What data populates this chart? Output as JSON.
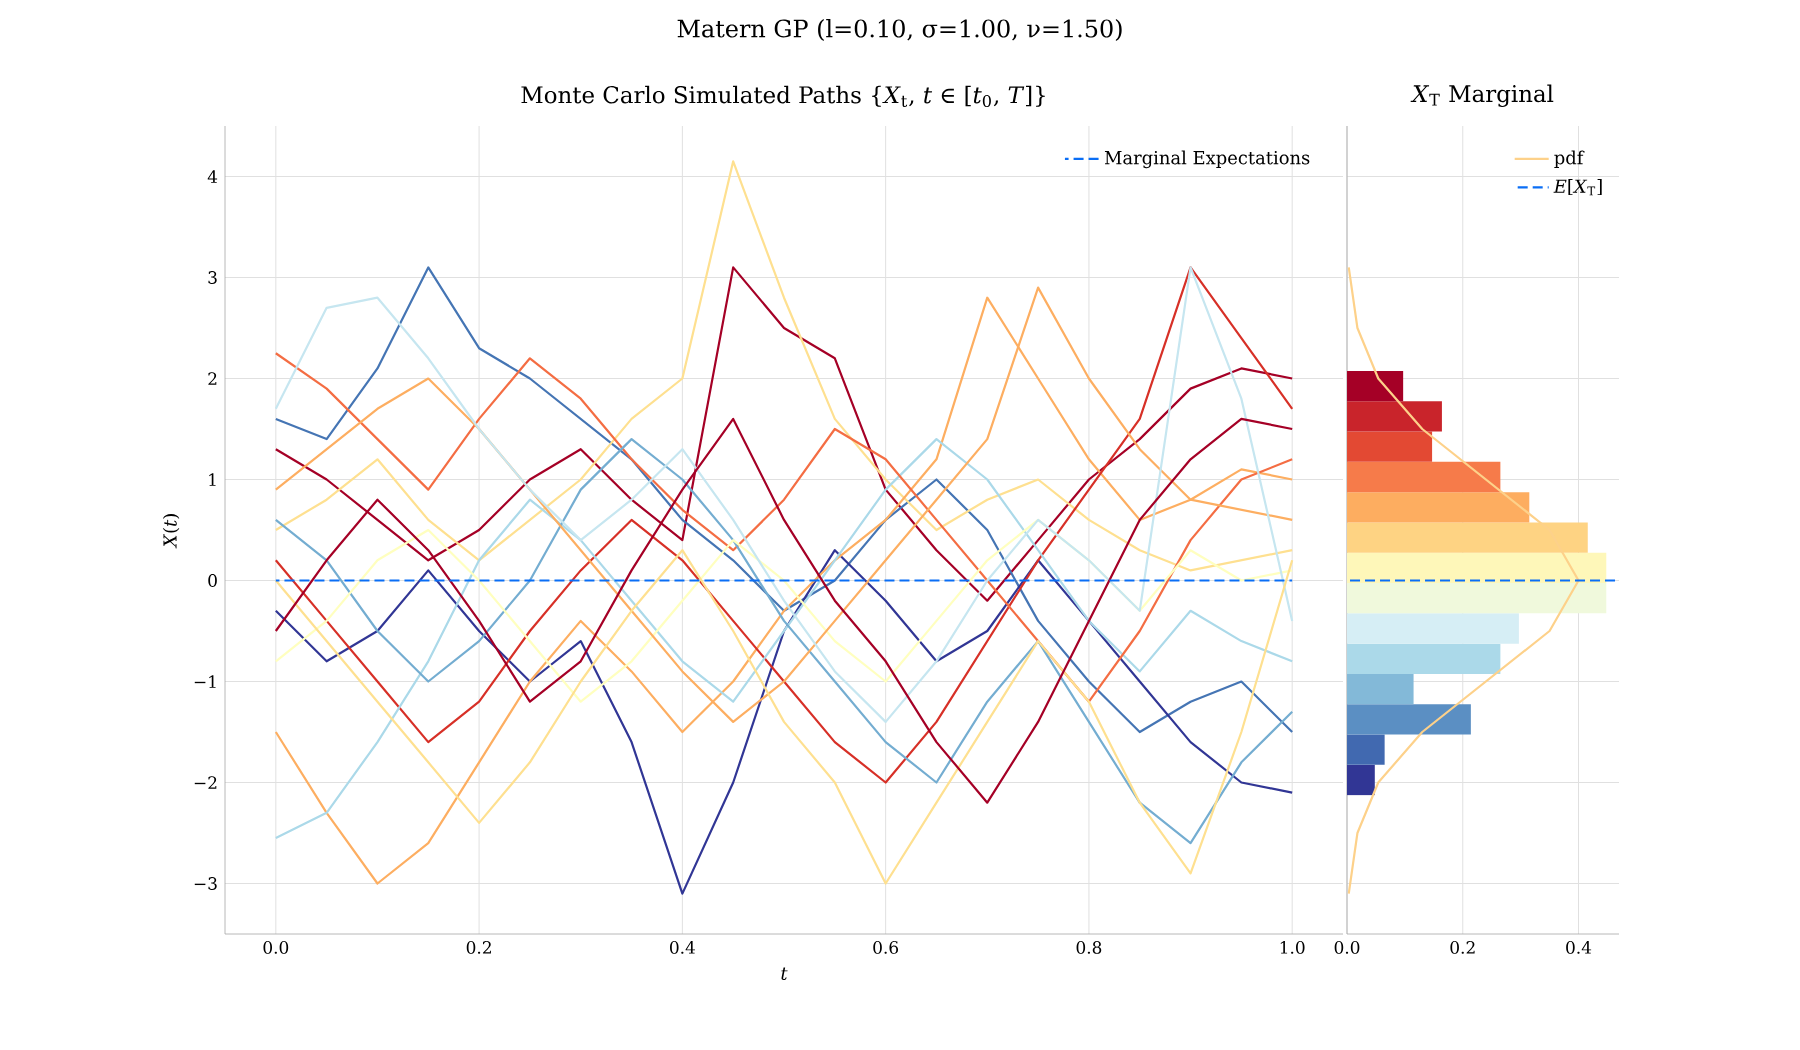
{
  "chart_data": [
    {
      "type": "line",
      "title": "Matern GP (l=0.10, σ=1.00, ν=1.50)",
      "subtitle": "Monte Carlo Simulated Paths {*X*$_{t}$, *t* ∈ [*t*$_{0}$, *T*]}",
      "xlabel": "t",
      "ylabel": "*X*(*t*)",
      "x": [
        0,
        0.05,
        0.1,
        0.15,
        0.2,
        0.25,
        0.3,
        0.35,
        0.4,
        0.45,
        0.5,
        0.55,
        0.6,
        0.65,
        0.7,
        0.75,
        0.8,
        0.85,
        0.9,
        0.95,
        1.0
      ],
      "xlim": [
        -0.05,
        1.05
      ],
      "ylim": [
        -3.5,
        4.5
      ],
      "xticks": [
        {
          "value": 0,
          "label": "0.0"
        },
        {
          "value": 0.2,
          "label": "0.2"
        },
        {
          "value": 0.4,
          "label": "0.4"
        },
        {
          "value": 0.6,
          "label": "0.6"
        },
        {
          "value": 0.8,
          "label": "0.8"
        },
        {
          "value": 1.0,
          "label": "1.0"
        }
      ],
      "yticks": [
        {
          "value": -3,
          "label": "−3"
        },
        {
          "value": -2,
          "label": "−2"
        },
        {
          "value": -1,
          "label": "−1"
        },
        0,
        1,
        2,
        3,
        4
      ],
      "grid": true,
      "legend": "top right",
      "series": [
        {
          "color": "#a50026",
          "values": [
            1.3,
            1.0,
            0.6,
            0.2,
            0.5,
            1.0,
            1.3,
            0.8,
            0.4,
            3.1,
            2.5,
            2.2,
            0.9,
            0.3,
            -0.2,
            0.4,
            1.0,
            1.4,
            1.9,
            2.1,
            2.0
          ]
        },
        {
          "color": "#4575b4",
          "values": [
            1.6,
            1.4,
            2.1,
            3.1,
            2.3,
            2.0,
            1.6,
            1.2,
            0.6,
            0.2,
            -0.3,
            0.0,
            0.6,
            1.0,
            0.5,
            -0.4,
            -1.0,
            -1.5,
            -1.2,
            -1.0,
            -1.5
          ]
        },
        {
          "color": "#313695",
          "values": [
            -0.3,
            -0.8,
            -0.5,
            0.1,
            -0.5,
            -1.0,
            -0.6,
            -1.6,
            -3.1,
            -2.0,
            -0.5,
            0.3,
            -0.2,
            -0.8,
            -0.5,
            0.2,
            -0.4,
            -1.0,
            -1.6,
            -2.0,
            -2.1
          ]
        },
        {
          "color": "#fee090",
          "values": [
            0.5,
            0.8,
            1.2,
            0.6,
            0.2,
            0.6,
            1.0,
            1.6,
            2.0,
            4.15,
            2.8,
            1.6,
            1.0,
            0.5,
            0.8,
            1.0,
            0.6,
            0.3,
            0.1,
            0.2,
            0.3
          ]
        },
        {
          "color": "#fdae61",
          "values": [
            -1.5,
            -2.3,
            -3.0,
            -2.6,
            -1.8,
            -1.0,
            -0.4,
            -0.9,
            -1.5,
            -1.0,
            -0.3,
            0.2,
            0.6,
            1.2,
            2.8,
            2.0,
            1.2,
            0.6,
            0.8,
            1.1,
            1.0
          ]
        },
        {
          "color": "#d73027",
          "values": [
            0.2,
            -0.4,
            -1.0,
            -1.6,
            -1.2,
            -0.5,
            0.1,
            0.6,
            0.2,
            -0.4,
            -1.0,
            -1.6,
            -2.0,
            -1.4,
            -0.6,
            0.2,
            0.9,
            1.6,
            3.1,
            2.4,
            1.7
          ]
        },
        {
          "color": "#abd9e9",
          "values": [
            -2.55,
            -2.3,
            -1.6,
            -0.8,
            0.2,
            0.8,
            0.4,
            -0.2,
            -0.8,
            -1.2,
            -0.5,
            0.2,
            0.9,
            1.4,
            1.0,
            0.3,
            -0.4,
            -0.9,
            -0.3,
            -0.6,
            -0.8
          ]
        },
        {
          "color": "#f46d43",
          "values": [
            2.25,
            1.9,
            1.4,
            0.9,
            1.6,
            2.2,
            1.8,
            1.2,
            0.7,
            0.3,
            0.8,
            1.5,
            1.2,
            0.6,
            0.0,
            -0.6,
            -1.2,
            -0.5,
            0.4,
            1.0,
            1.2
          ]
        },
        {
          "color": "#74add1",
          "values": [
            0.6,
            0.2,
            -0.5,
            -1.0,
            -0.6,
            0.0,
            0.9,
            1.4,
            1.0,
            0.4,
            -0.4,
            -1.0,
            -1.6,
            -2.0,
            -1.2,
            -0.6,
            -1.4,
            -2.2,
            -2.6,
            -1.8,
            -1.3
          ]
        },
        {
          "color": "#ffffbf",
          "values": [
            -0.8,
            -0.4,
            0.2,
            0.5,
            0.0,
            -0.6,
            -1.2,
            -0.8,
            -0.2,
            0.4,
            0.0,
            -0.6,
            -1.0,
            -0.4,
            0.2,
            0.6,
            0.2,
            -0.3,
            0.3,
            0.0,
            0.1
          ]
        },
        {
          "color": "#fdae61",
          "values": [
            0.9,
            1.3,
            1.7,
            2.0,
            1.5,
            0.9,
            0.3,
            -0.3,
            -0.9,
            -1.4,
            -1.0,
            -0.4,
            0.2,
            0.8,
            1.4,
            2.9,
            2.0,
            1.3,
            0.8,
            0.7,
            0.6
          ]
        },
        {
          "color": "#c6e6f0",
          "values": [
            1.7,
            2.7,
            2.8,
            2.2,
            1.5,
            0.9,
            0.4,
            0.8,
            1.3,
            0.6,
            -0.2,
            -0.9,
            -1.4,
            -0.8,
            0.0,
            0.6,
            0.2,
            -0.3,
            3.1,
            1.8,
            -0.4
          ]
        },
        {
          "color": "#fee090",
          "values": [
            0.0,
            -0.6,
            -1.2,
            -1.8,
            -2.4,
            -1.8,
            -1.0,
            -0.3,
            0.3,
            -0.5,
            -1.4,
            -2.0,
            -3.0,
            -2.2,
            -1.4,
            -0.6,
            -1.2,
            -2.2,
            -2.9,
            -1.5,
            0.2
          ]
        },
        {
          "color": "#a50026",
          "values": [
            -0.5,
            0.2,
            0.8,
            0.3,
            -0.4,
            -1.2,
            -0.8,
            0.1,
            0.9,
            1.6,
            0.6,
            -0.2,
            -0.8,
            -1.6,
            -2.2,
            -1.4,
            -0.4,
            0.6,
            1.2,
            1.6,
            1.5
          ]
        },
        {
          "name": "Marginal Expectations",
          "color": "#0a6ef5",
          "line_style": "dashed",
          "x": [
            0,
            1
          ],
          "values": [
            0,
            0
          ]
        }
      ]
    },
    {
      "type": "histogram",
      "orientation": "horizontal",
      "subtitle": "*X*$_{T}$ Marginal",
      "bins": [
        -2.125,
        -1.825,
        -1.525,
        -1.225,
        -0.925,
        -0.625,
        -0.325,
        -0.025,
        0.275,
        0.575,
        0.875,
        1.175,
        1.475,
        1.775,
        2.075
      ],
      "values": [
        0.048,
        0.065,
        0.214,
        0.115,
        0.265,
        0.297,
        0.448,
        0.448,
        0.416,
        0.315,
        0.265,
        0.147,
        0.164,
        0.097
      ],
      "colors": [
        "#313695",
        "#4169b0",
        "#5b8fc3",
        "#83b9d8",
        "#abd9e9",
        "#d6eef5",
        "#f0f9dc",
        "#fef7b9",
        "#fed383",
        "#fdad60",
        "#f67b4a",
        "#e34933",
        "#c9242b",
        "#a50026"
      ],
      "xlim": [
        0,
        0.47
      ],
      "ylim": [
        -3.5,
        4.5
      ],
      "xticks": [
        {
          "value": 0,
          "label": "0.0"
        },
        {
          "value": 0.2,
          "label": "0.2"
        },
        {
          "value": 0.4,
          "label": "0.4"
        }
      ],
      "yticks": [
        -3,
        -2,
        -1,
        0,
        1,
        2,
        3,
        4
      ],
      "tick_labels": "x",
      "grid": true,
      "legend": "top right",
      "series": [
        {
          "name": "pdf",
          "type": "line",
          "color": "#fdd18a",
          "x": [
            -3.1,
            -2.5,
            -2.0,
            -1.5,
            -1.0,
            -0.5,
            0.0,
            0.5,
            1.0,
            1.5,
            2.0,
            2.5,
            3.1
          ],
          "values": [
            0.003,
            0.018,
            0.054,
            0.13,
            0.24,
            0.35,
            0.4,
            0.35,
            0.24,
            0.13,
            0.054,
            0.018,
            0.003
          ]
        }
      ],
      "ref_lines": [
        {
          "axis": "y",
          "value": 0,
          "label": "*E*[*X*$_{T}$]",
          "color": "#0a6ef5",
          "line_style": "dashed"
        }
      ]
    }
  ]
}
